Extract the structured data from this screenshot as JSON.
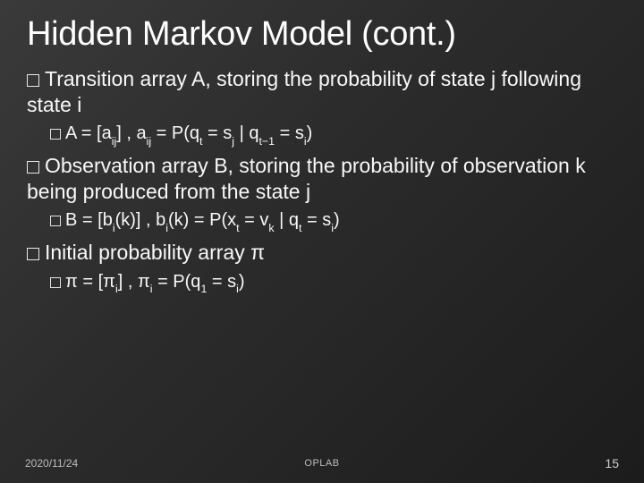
{
  "background": {
    "gradient_from": "#3a3a3a",
    "gradient_mid": "#2c2c2c",
    "gradient_to": "#1c1c1c"
  },
  "text_color": "#f8f8f8",
  "title_color": "#ffffff",
  "title": "Hidden Markov Model (cont.)",
  "title_fontsize": 38,
  "body_fontsize": 23,
  "sub_fontsize": 20,
  "bullet_marker": "outlined-square",
  "bullets": [
    {
      "level": 1,
      "text": "Transition array A, storing the probability of state j following state i"
    },
    {
      "level": 2,
      "formula_prefix": "A = [a",
      "sub1": "ij",
      "formula_mid1": "] , a",
      "sub2": "ij",
      "formula_mid2": " = P(q",
      "sub3": "t",
      "formula_mid3": " = s",
      "sub4": "j",
      "formula_mid4": " | q",
      "sub5": "t−1",
      "formula_mid5": " = s",
      "sub6": "i",
      "formula_suffix": ")"
    },
    {
      "level": 1,
      "text": "Observation array B, storing the probability of observation k being produced from the state j"
    },
    {
      "level": 2,
      "formula_prefix": "B = [b",
      "sub1": "i",
      "formula_mid1": "(k)] , b",
      "sub2": "i",
      "formula_mid2": "(k) = P(x",
      "sub3": "t",
      "formula_mid3": " = v",
      "sub4": "k",
      "formula_mid4": " | q",
      "sub5": "t",
      "formula_mid5": " = s",
      "sub6": "i",
      "formula_suffix": ")"
    },
    {
      "level": 1,
      "text": "Initial probability array π"
    },
    {
      "level": 2,
      "formula_prefix": "π = [π",
      "sub1": "i",
      "formula_mid1": "] , π",
      "sub2": "i",
      "formula_mid2": " = P(q",
      "sub3": "1",
      "formula_mid3": " = s",
      "sub4": "i",
      "formula_mid4": "",
      "sub5": "",
      "formula_mid5": "",
      "sub6": "",
      "formula_suffix": ")"
    }
  ],
  "footer": {
    "date": "2020/11/24",
    "center": "OPLAB",
    "page": "15"
  }
}
